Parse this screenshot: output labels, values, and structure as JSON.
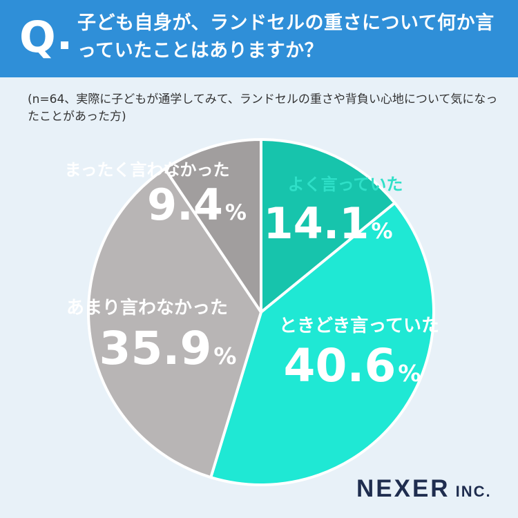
{
  "header": {
    "q_mark": "Q",
    "question": "子ども自身が、ランドセルの重さについて何か言っていたことはありますか？"
  },
  "note": "(n=64、実際に子どもが通学してみて、ランドセルの重さや背負い心地について気になったことがあった方)",
  "brand": {
    "name": "NEXER",
    "suffix": "INC."
  },
  "colors": {
    "header_bg": "#2f8fd8",
    "background": "#e8f1f8",
    "brand_text": "#1f2d4f"
  },
  "chart_data": {
    "type": "pie",
    "unit": "%",
    "slices": [
      {
        "label": "よく言っていた",
        "value": 14.1,
        "color": "#17c4ac",
        "label_color": "#2fe0c8",
        "value_color": "#ffffff"
      },
      {
        "label": "ときどき言っていた",
        "value": 40.6,
        "color": "#1fe8d4",
        "label_color": "#ffffff",
        "value_color": "#ffffff"
      },
      {
        "label": "あまり言わなかった",
        "value": 35.9,
        "color": "#b8b5b5",
        "label_color": "#ffffff",
        "value_color": "#ffffff"
      },
      {
        "label": "まったく言わなかった",
        "value": 9.4,
        "color": "#a19e9e",
        "label_color": "#ffffff",
        "value_color": "#ffffff"
      }
    ]
  }
}
